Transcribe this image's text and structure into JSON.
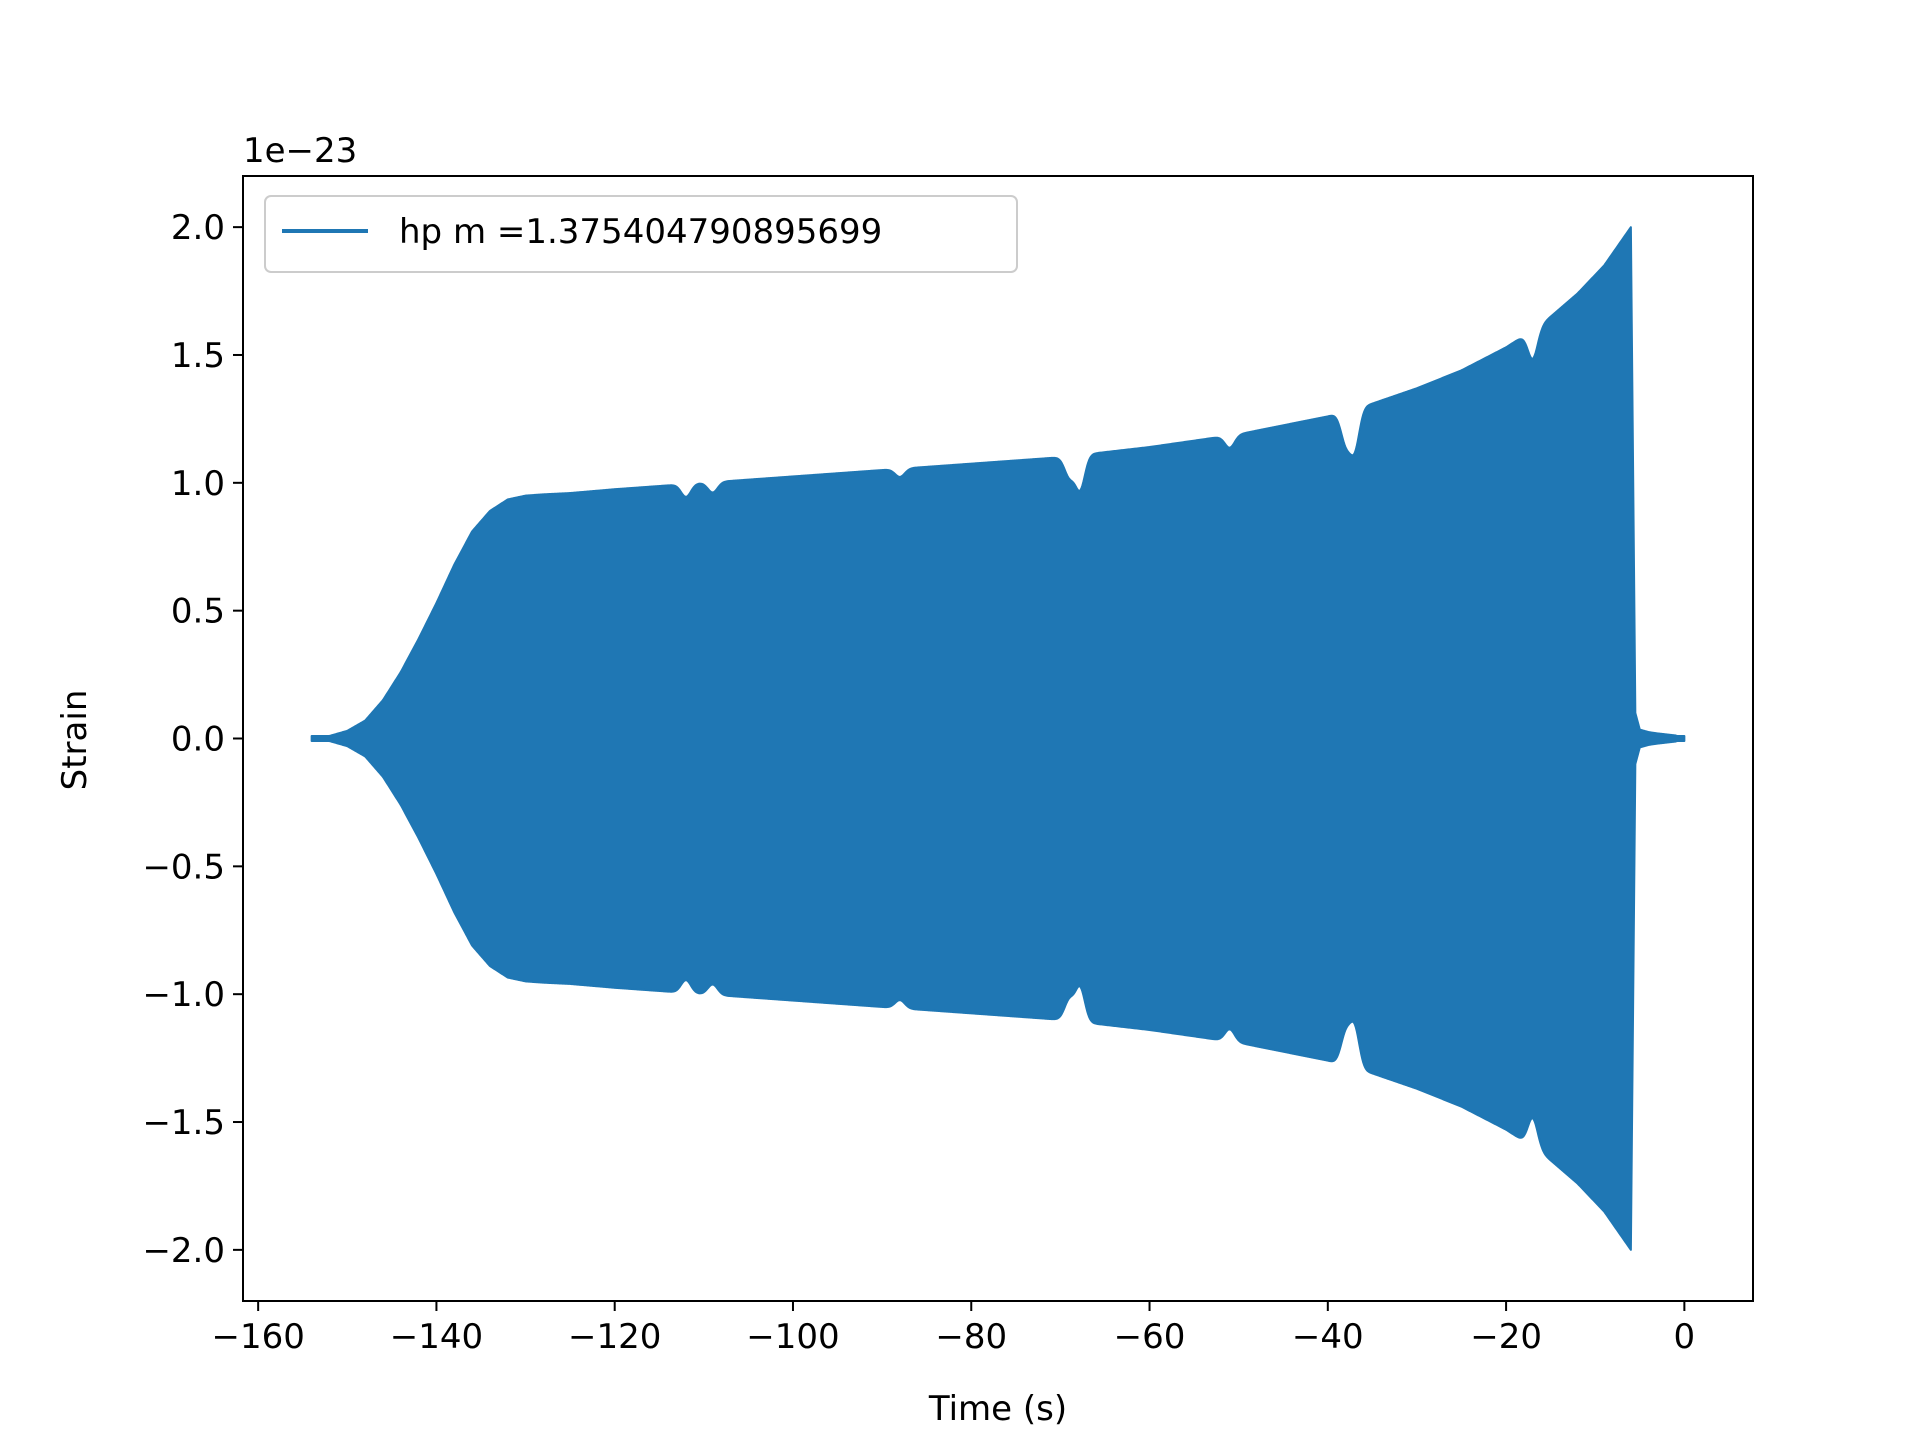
{
  "chart_data": {
    "type": "line",
    "title": "",
    "xlabel": "Time (s)",
    "ylabel": "Strain",
    "offset_text": "1e−23",
    "xlim": [
      -161.7,
      7.7
    ],
    "ylim": [
      -2.2,
      2.2
    ],
    "grid": false,
    "legend_position": "upper-left",
    "x_ticks": [
      {
        "value": -160,
        "label": "−160"
      },
      {
        "value": -140,
        "label": "−140"
      },
      {
        "value": -120,
        "label": "−120"
      },
      {
        "value": -100,
        "label": "−100"
      },
      {
        "value": -80,
        "label": "−80"
      },
      {
        "value": -60,
        "label": "−60"
      },
      {
        "value": -40,
        "label": "−40"
      },
      {
        "value": -20,
        "label": "−20"
      },
      {
        "value": 0,
        "label": "0"
      }
    ],
    "y_ticks": [
      {
        "value": 2.0,
        "label": "2.0"
      },
      {
        "value": 1.5,
        "label": "1.5"
      },
      {
        "value": 1.0,
        "label": "1.0"
      },
      {
        "value": 0.5,
        "label": "0.5"
      },
      {
        "value": 0.0,
        "label": "0.0"
      },
      {
        "value": -0.5,
        "label": "−0.5"
      },
      {
        "value": -1.0,
        "label": "−1.0"
      },
      {
        "value": -1.5,
        "label": "−1.5"
      },
      {
        "value": -2.0,
        "label": "−2.0"
      }
    ],
    "series": [
      {
        "name": "hp m =1.375404790895699",
        "color": "#1f77b4",
        "envelope": {
          "t": [
            -154,
            -152,
            -150,
            -148,
            -146,
            -144,
            -142,
            -140,
            -138,
            -136,
            -134,
            -132,
            -130,
            -128,
            -125,
            -120,
            -110,
            -100,
            -90,
            -80,
            -70,
            -60,
            -50,
            -40,
            -35,
            -30,
            -25,
            -20,
            -16,
            -12,
            -9,
            -7,
            -6.2,
            -6.0
          ],
          "amp": [
            0.0,
            0.01,
            0.03,
            0.07,
            0.15,
            0.26,
            0.39,
            0.53,
            0.68,
            0.81,
            0.89,
            0.935,
            0.95,
            0.955,
            0.96,
            0.975,
            1.0,
            1.025,
            1.05,
            1.075,
            1.1,
            1.14,
            1.19,
            1.26,
            1.31,
            1.37,
            1.44,
            1.53,
            1.62,
            1.74,
            1.85,
            1.95,
            1.99,
            2.0
          ]
        },
        "ringdown": {
          "t": [
            -6.0,
            -5.5,
            -5.0,
            -4.0,
            -3.0,
            -1.0,
            0.0
          ],
          "amp": [
            2.0,
            0.1,
            0.035,
            0.025,
            0.02,
            0.012,
            0.0
          ]
        },
        "dips": [
          {
            "t": -112.0,
            "amp_factor": 0.95
          },
          {
            "t": -109.0,
            "amp_factor": 0.96
          },
          {
            "t": -88.0,
            "amp_factor": 0.97
          },
          {
            "t": -69.0,
            "amp_factor": 0.93
          },
          {
            "t": -67.8,
            "amp_factor": 0.88
          },
          {
            "t": -51.0,
            "amp_factor": 0.96
          },
          {
            "t": -38.0,
            "amp_factor": 0.91
          },
          {
            "t": -37.0,
            "amp_factor": 0.88
          },
          {
            "t": -17.0,
            "amp_factor": 0.93
          }
        ]
      }
    ]
  }
}
